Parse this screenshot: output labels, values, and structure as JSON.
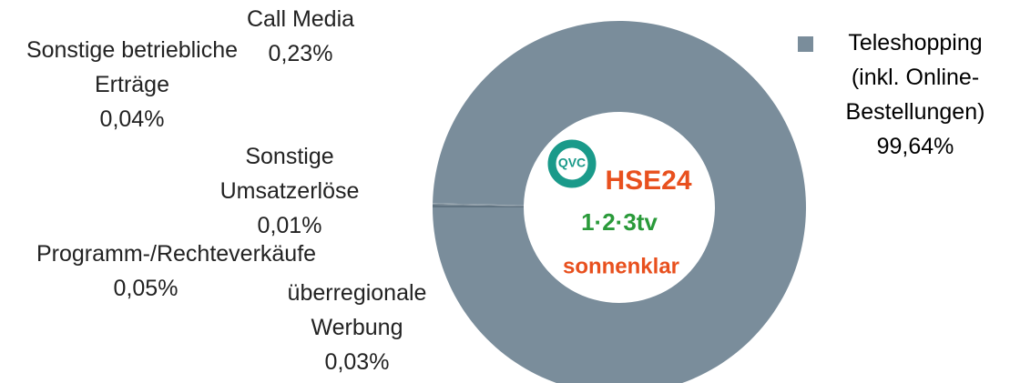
{
  "chart_data": {
    "type": "donut",
    "categories": [
      "Teleshopping (inkl. Online-Bestellungen)",
      "Call Media",
      "Sonstige betriebliche Erträge",
      "Sonstige Umsatzerlöse",
      "Programm-/Rechteverkäufe",
      "überregionale Werbung"
    ],
    "values": [
      99.64,
      0.23,
      0.04,
      0.01,
      0.05,
      0.03
    ],
    "value_labels": [
      "99,64%",
      "0,23%",
      "0,04%",
      "0,01%",
      "0,05%",
      "0,03%"
    ],
    "colors": [
      "#7a8d9b",
      "#5f7280",
      "#8a9aa6",
      "#4f5f6b",
      "#6b7d8a",
      "#95a4ae"
    ],
    "legend": "top-right",
    "logos": [
      "QVC",
      "HSE24",
      "1·2·3tv",
      "sonnenklar"
    ]
  }
}
